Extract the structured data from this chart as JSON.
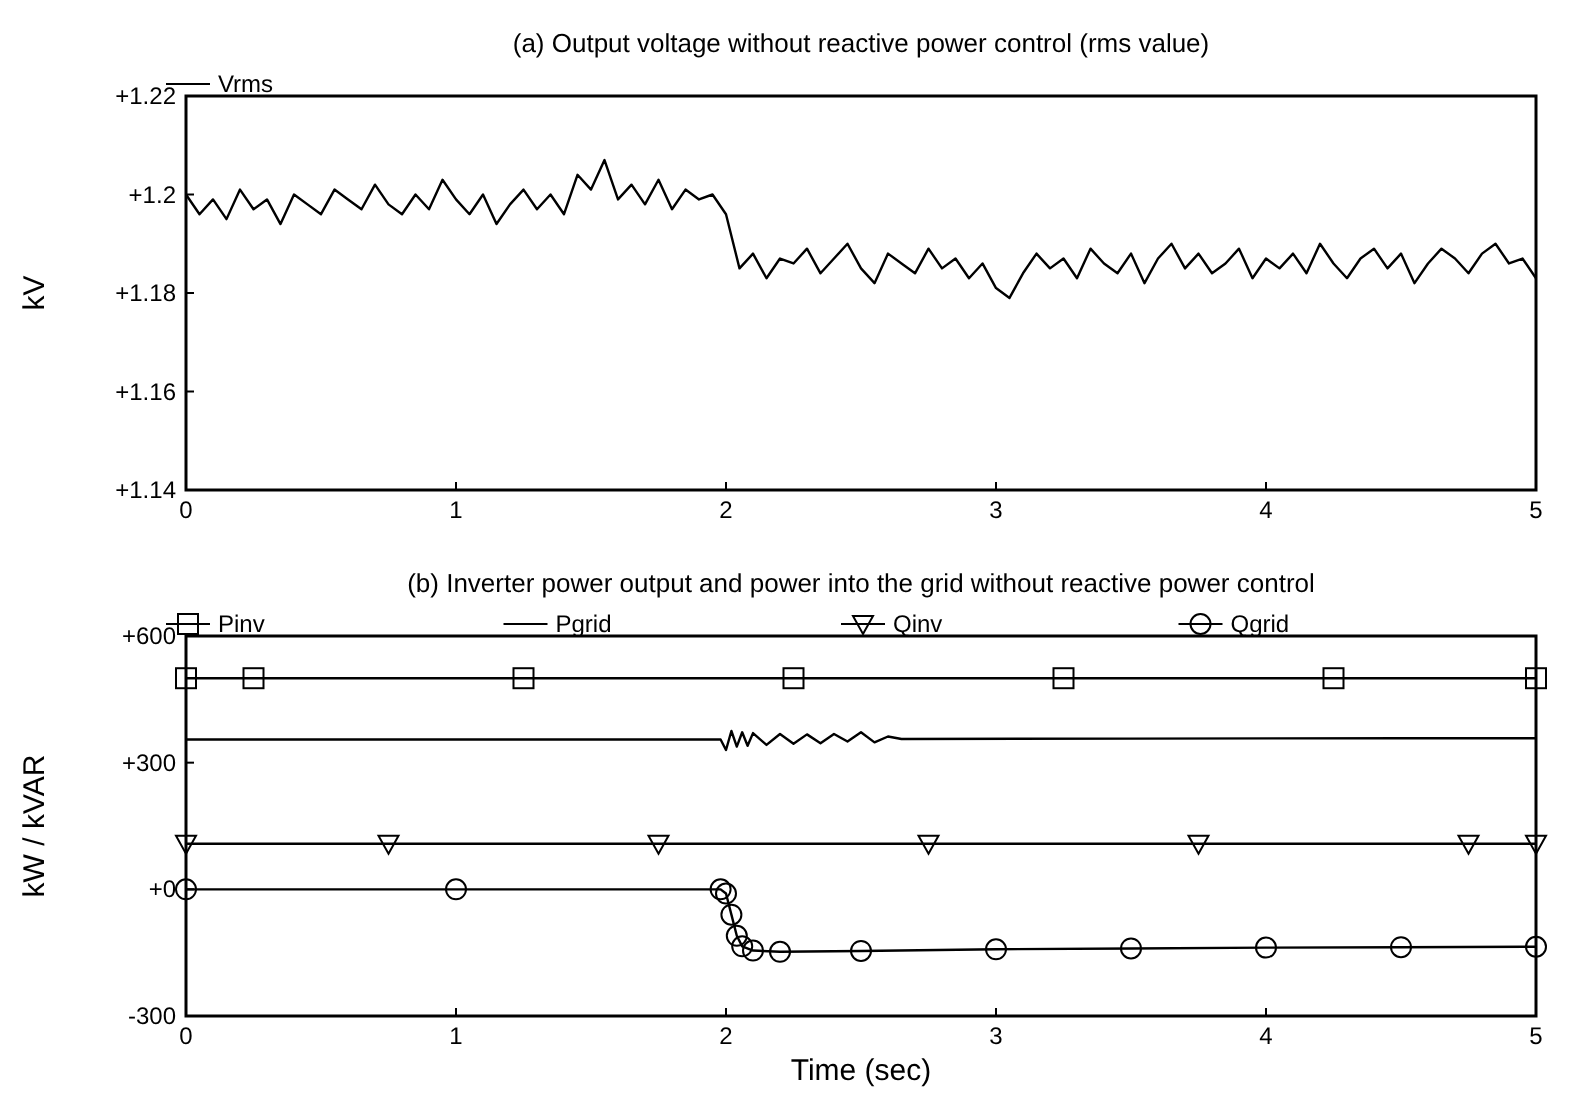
{
  "chart_data": [
    {
      "type": "line",
      "title": "(a) Output voltage without reactive power control (rms value)",
      "ylabel": "kV",
      "xlim": [
        0,
        5
      ],
      "xticks": [
        0,
        1,
        2,
        3,
        4,
        5
      ],
      "ylim": [
        1.14,
        1.22
      ],
      "yticks": [
        {
          "value": 1.14,
          "label": "+1.14"
        },
        {
          "value": 1.16,
          "label": "+1.16"
        },
        {
          "value": 1.18,
          "label": "+1.18"
        },
        {
          "value": 1.2,
          "label": "+1.2"
        },
        {
          "value": 1.22,
          "label": "+1.22"
        }
      ],
      "grid": false,
      "legend": "top left",
      "series": [
        {
          "name": "Vrms",
          "color": "#000000",
          "x": [
            0,
            0.05,
            0.1,
            0.15,
            0.2,
            0.25,
            0.3,
            0.35,
            0.4,
            0.45,
            0.5,
            0.55,
            0.6,
            0.65,
            0.7,
            0.75,
            0.8,
            0.85,
            0.9,
            0.95,
            1,
            1.05,
            1.1,
            1.15,
            1.2,
            1.25,
            1.3,
            1.35,
            1.4,
            1.45,
            1.5,
            1.55,
            1.6,
            1.65,
            1.7,
            1.75,
            1.8,
            1.85,
            1.9,
            1.95,
            2,
            2.05,
            2.1,
            2.15,
            2.2,
            2.25,
            2.3,
            2.35,
            2.4,
            2.45,
            2.5,
            2.55,
            2.6,
            2.65,
            2.7,
            2.75,
            2.8,
            2.85,
            2.9,
            2.95,
            3,
            3.05,
            3.1,
            3.15,
            3.2,
            3.25,
            3.3,
            3.35,
            3.4,
            3.45,
            3.5,
            3.55,
            3.6,
            3.65,
            3.7,
            3.75,
            3.8,
            3.85,
            3.9,
            3.95,
            4,
            4.05,
            4.1,
            4.15,
            4.2,
            4.25,
            4.3,
            4.35,
            4.4,
            4.45,
            4.5,
            4.55,
            4.6,
            4.65,
            4.7,
            4.75,
            4.8,
            4.85,
            4.9,
            4.95,
            5
          ],
          "values": [
            1.2,
            1.196,
            1.199,
            1.195,
            1.201,
            1.197,
            1.199,
            1.194,
            1.2,
            1.198,
            1.196,
            1.201,
            1.199,
            1.197,
            1.202,
            1.198,
            1.196,
            1.2,
            1.197,
            1.203,
            1.199,
            1.196,
            1.2,
            1.194,
            1.198,
            1.201,
            1.197,
            1.2,
            1.196,
            1.204,
            1.201,
            1.207,
            1.199,
            1.202,
            1.198,
            1.203,
            1.197,
            1.201,
            1.199,
            1.2,
            1.196,
            1.185,
            1.188,
            1.183,
            1.187,
            1.186,
            1.189,
            1.184,
            1.187,
            1.19,
            1.185,
            1.182,
            1.188,
            1.186,
            1.184,
            1.189,
            1.185,
            1.187,
            1.183,
            1.186,
            1.181,
            1.179,
            1.184,
            1.188,
            1.185,
            1.187,
            1.183,
            1.189,
            1.186,
            1.184,
            1.188,
            1.182,
            1.187,
            1.19,
            1.185,
            1.188,
            1.184,
            1.186,
            1.189,
            1.183,
            1.187,
            1.185,
            1.188,
            1.184,
            1.19,
            1.186,
            1.183,
            1.187,
            1.189,
            1.185,
            1.188,
            1.182,
            1.186,
            1.189,
            1.187,
            1.184,
            1.188,
            1.19,
            1.186,
            1.187,
            1.183
          ]
        }
      ]
    },
    {
      "type": "line",
      "title": "(b) Inverter power output and power into the grid without reactive power control",
      "xlabel": "Time (sec)",
      "ylabel": "kW / kVAR",
      "xlim": [
        0,
        5
      ],
      "xticks": [
        0,
        1,
        2,
        3,
        4,
        5
      ],
      "ylim": [
        -300,
        600
      ],
      "yticks": [
        -300,
        {
          "value": 0,
          "label": "+0"
        },
        {
          "value": 300,
          "label": "+300"
        },
        {
          "value": 600,
          "label": "+600"
        }
      ],
      "grid": false,
      "legend": "top",
      "series": [
        {
          "name": "Pinv",
          "color": "#000000",
          "marker": "square",
          "x": [
            0,
            0.25,
            1.25,
            2.25,
            3.25,
            4.25,
            5
          ],
          "values": [
            500,
            500,
            500,
            500,
            500,
            500,
            500
          ]
        },
        {
          "name": "Pgrid",
          "color": "#000000",
          "x": [
            0,
            0.5,
            1.5,
            1.98,
            2.0,
            2.02,
            2.04,
            2.06,
            2.08,
            2.1,
            2.15,
            2.2,
            2.25,
            2.3,
            2.35,
            2.4,
            2.45,
            2.5,
            2.55,
            2.6,
            2.65,
            3.5,
            4.5,
            5
          ],
          "values": [
            355,
            355,
            355,
            355,
            330,
            375,
            338,
            372,
            340,
            370,
            342,
            368,
            345,
            367,
            346,
            368,
            350,
            372,
            348,
            362,
            356,
            357,
            358,
            358
          ]
        },
        {
          "name": "Qinv",
          "color": "#000000",
          "marker": "triangle-down",
          "x": [
            0,
            0.75,
            1.75,
            2.75,
            3.75,
            4.75,
            5
          ],
          "values": [
            108,
            108,
            108,
            108,
            108,
            108,
            108
          ]
        },
        {
          "name": "Qgrid",
          "color": "#000000",
          "marker": "circle",
          "x": [
            0,
            1,
            1.98,
            2,
            2.02,
            2.04,
            2.06,
            2.1,
            2.2,
            2.5,
            3,
            3.5,
            4,
            4.5,
            5
          ],
          "values": [
            0,
            0,
            0,
            -10,
            -60,
            -110,
            -135,
            -145,
            -148,
            -146,
            -142,
            -140,
            -138,
            -137,
            -136
          ]
        }
      ]
    }
  ]
}
